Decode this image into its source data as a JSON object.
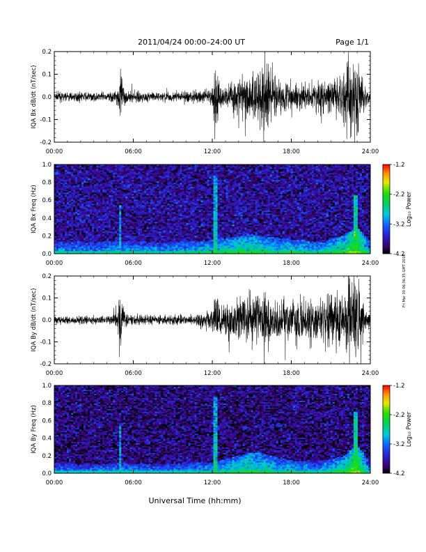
{
  "header": {
    "title": "2011/04/24  00:00–24:00 UT",
    "page": "Page 1/1"
  },
  "footer": {
    "xlabel": "Universal Time (hh:mm)",
    "side_note": "Fri Mar 30 06:36:35 GMT 2018"
  },
  "colorbar": {
    "label": "Log₁₀ Power",
    "ticks": [
      "-1.2",
      "-2.2",
      "-3.2",
      "-4.2"
    ],
    "range": [
      -4.2,
      -1.2
    ]
  },
  "chart_data": [
    {
      "type": "line",
      "ylabel": "IQA Bx dB/dt (nT/sec)",
      "xlim": [
        0,
        24
      ],
      "ylim": [
        -0.2,
        0.2
      ],
      "x_ticks": [
        "00:00",
        "06:00",
        "12:00",
        "18:00",
        "24:00"
      ],
      "y_ticks": [
        "0.2",
        "0.1",
        "0.0",
        "-0.1",
        "-0.2"
      ],
      "grid": false,
      "series": [
        {
          "x": [
            0,
            1,
            2,
            3,
            4,
            4.8,
            5.0,
            5.2,
            5.5,
            6,
            7,
            8,
            9,
            10,
            11,
            12,
            12.3,
            12.6,
            13,
            14,
            14.5,
            15,
            15.5,
            16,
            16.5,
            17,
            18,
            19,
            20,
            21,
            22,
            22.5,
            23,
            23.3,
            23.6,
            24
          ],
          "amplitude": [
            0.022,
            0.02,
            0.02,
            0.02,
            0.022,
            0.03,
            0.15,
            0.06,
            0.03,
            0.025,
            0.022,
            0.022,
            0.022,
            0.025,
            0.03,
            0.04,
            0.15,
            0.06,
            0.05,
            0.09,
            0.14,
            0.1,
            0.16,
            0.2,
            0.12,
            0.08,
            0.06,
            0.06,
            0.07,
            0.09,
            0.12,
            0.2,
            0.2,
            0.12,
            0.05,
            0.03
          ]
        }
      ]
    },
    {
      "type": "heatmap",
      "ylabel": "IQA Bx Freq (Hz)",
      "xlim": [
        0,
        24
      ],
      "ylim": [
        0,
        1.0
      ],
      "x_ticks": [
        "00:00",
        "06:00",
        "12:00",
        "18:00",
        "24:00"
      ],
      "y_ticks": [
        "1.0",
        "0.8",
        "0.6",
        "0.4",
        "0.2",
        "0.0"
      ],
      "background_power": -3.8,
      "low_band": {
        "x": [
          0,
          3,
          5,
          8,
          12,
          13,
          14,
          15,
          16,
          17,
          18,
          20,
          22,
          23,
          24
        ],
        "top_freq": [
          0.14,
          0.13,
          0.14,
          0.13,
          0.15,
          0.18,
          0.2,
          0.22,
          0.2,
          0.18,
          0.16,
          0.14,
          0.2,
          0.3,
          0.14
        ],
        "power": [
          -3.0,
          -3.0,
          -2.9,
          -3.0,
          -2.8,
          -2.7,
          -2.6,
          -2.6,
          -2.7,
          -2.8,
          -2.7,
          -2.9,
          -2.5,
          -2.2,
          -3.0
        ]
      },
      "vertical_bursts": [
        {
          "x": 5.0,
          "top_freq": 0.55,
          "power": -2.8
        },
        {
          "x": 12.3,
          "top_freq": 0.88,
          "power": -2.6
        },
        {
          "x": 22.9,
          "top_freq": 0.65,
          "power": -2.4
        }
      ]
    },
    {
      "type": "line",
      "ylabel": "IQA By dB/dt (nT/sec)",
      "xlim": [
        0,
        24
      ],
      "ylim": [
        -0.2,
        0.2
      ],
      "x_ticks": [
        "00:00",
        "06:00",
        "12:00",
        "18:00",
        "24:00"
      ],
      "y_ticks": [
        "0.2",
        "0.1",
        "0.0",
        "-0.1",
        "-0.2"
      ],
      "grid": false,
      "series": [
        {
          "x": [
            0,
            1,
            2,
            3,
            4,
            4.8,
            5.0,
            5.2,
            5.5,
            6,
            7,
            8,
            9,
            10,
            11,
            12,
            12.3,
            12.6,
            13,
            14,
            14.5,
            15,
            15.5,
            16,
            16.5,
            17,
            18,
            19,
            20,
            21,
            22,
            22.5,
            23,
            23.3,
            23.6,
            24
          ],
          "amplitude": [
            0.022,
            0.02,
            0.02,
            0.02,
            0.022,
            0.04,
            0.18,
            0.08,
            0.03,
            0.025,
            0.022,
            0.022,
            0.022,
            0.025,
            0.03,
            0.05,
            0.12,
            0.06,
            0.07,
            0.1,
            0.12,
            0.11,
            0.12,
            0.13,
            0.12,
            0.11,
            0.1,
            0.1,
            0.11,
            0.12,
            0.13,
            0.2,
            0.2,
            0.14,
            0.06,
            0.03
          ]
        }
      ]
    },
    {
      "type": "heatmap",
      "ylabel": "IQA By Freq (Hz)",
      "xlim": [
        0,
        24
      ],
      "ylim": [
        0,
        1.0
      ],
      "x_ticks": [
        "00:00",
        "06:00",
        "12:00",
        "18:00",
        "24:00"
      ],
      "y_ticks": [
        "1.0",
        "0.8",
        "0.6",
        "0.4",
        "0.2",
        "0.0"
      ],
      "background_power": -3.9,
      "low_band": {
        "x": [
          0,
          3,
          5,
          8,
          12,
          13,
          14,
          15,
          16,
          17,
          18,
          20,
          22,
          23,
          24
        ],
        "top_freq": [
          0.12,
          0.11,
          0.12,
          0.11,
          0.13,
          0.16,
          0.2,
          0.24,
          0.22,
          0.18,
          0.15,
          0.13,
          0.2,
          0.32,
          0.12
        ],
        "power": [
          -3.1,
          -3.1,
          -3.0,
          -3.1,
          -2.9,
          -2.8,
          -2.7,
          -2.6,
          -2.7,
          -2.9,
          -2.8,
          -3.0,
          -2.6,
          -2.2,
          -3.1
        ]
      },
      "vertical_bursts": [
        {
          "x": 5.0,
          "top_freq": 0.55,
          "power": -2.8
        },
        {
          "x": 12.3,
          "top_freq": 0.88,
          "power": -2.6
        },
        {
          "x": 22.9,
          "top_freq": 0.7,
          "power": -2.4
        }
      ]
    }
  ]
}
